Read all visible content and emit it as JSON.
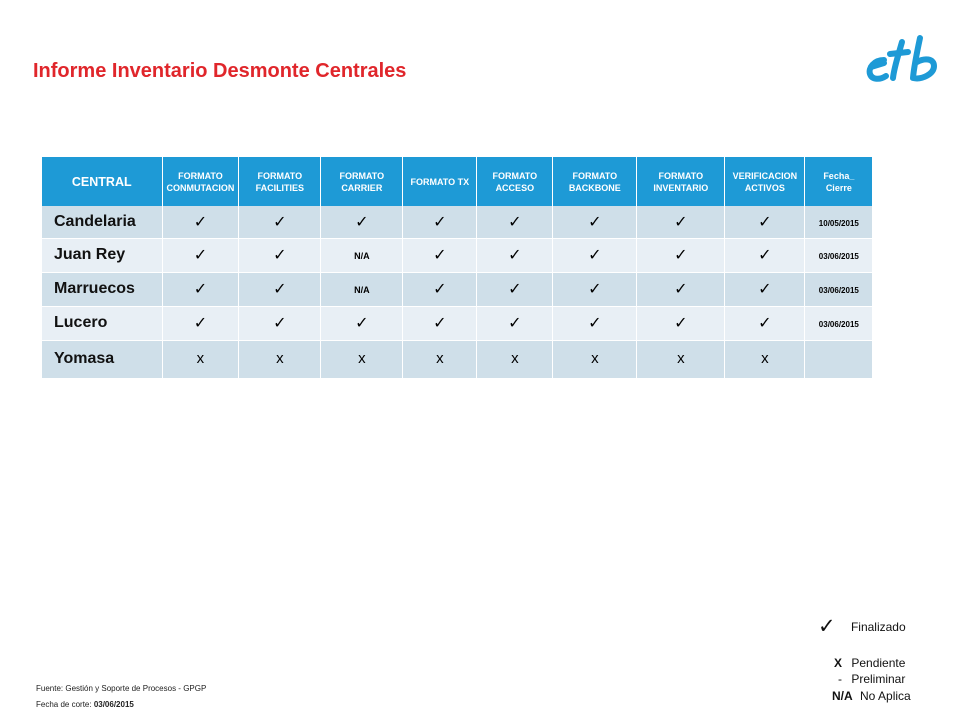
{
  "title": "Informe Inventario Desmonte Centrales",
  "table": {
    "headers": [
      "CENTRAL",
      "FORMATO CONMUTACION",
      "FORMATO FACILITIES",
      "FORMATO CARRIER",
      "FORMATO TX",
      "FORMATO ACCESO",
      "FORMATO BACKBONE",
      "FORMATO INVENTARIO",
      "VERIFICACION ACTIVOS",
      "Fecha_ Cierre"
    ],
    "rows": [
      {
        "name": "Candelaria",
        "cells": [
          "✓",
          "✓",
          "✓",
          "✓",
          "✓",
          "✓",
          "✓",
          "✓"
        ],
        "date": "10/05/2015"
      },
      {
        "name": "Juan Rey",
        "cells": [
          "✓",
          "✓",
          "N/A",
          "✓",
          "✓",
          "✓",
          "✓",
          "✓"
        ],
        "date": "03/06/2015"
      },
      {
        "name": "Marruecos",
        "cells": [
          "✓",
          "✓",
          "N/A",
          "✓",
          "✓",
          "✓",
          "✓",
          "✓"
        ],
        "date": "03/06/2015"
      },
      {
        "name": "Lucero",
        "cells": [
          "✓",
          "✓",
          "✓",
          "✓",
          "✓",
          "✓",
          "✓",
          "✓"
        ],
        "date": "03/06/2015"
      },
      {
        "name": "Yomasa",
        "cells": [
          "x",
          "x",
          "x",
          "x",
          "x",
          "x",
          "x",
          "x"
        ],
        "date": ""
      }
    ]
  },
  "legend": {
    "finalizado_symbol": "✓",
    "finalizado": "Finalizado",
    "pendiente_symbol": "X",
    "pendiente": "Pendiente",
    "preliminar_symbol": "-",
    "preliminar": "Preliminar",
    "noaplica_symbol": "N/A",
    "noaplica": "No Aplica"
  },
  "footer": {
    "fuente": "Fuente: Gestión y Soporte de Procesos - GPGP",
    "fecha_label": "Fecha de corte: ",
    "fecha_value": "03/06/2015"
  },
  "colors": {
    "title": "#e0262b",
    "header": "#1e9ad6",
    "logo": "#1e9ad6"
  }
}
